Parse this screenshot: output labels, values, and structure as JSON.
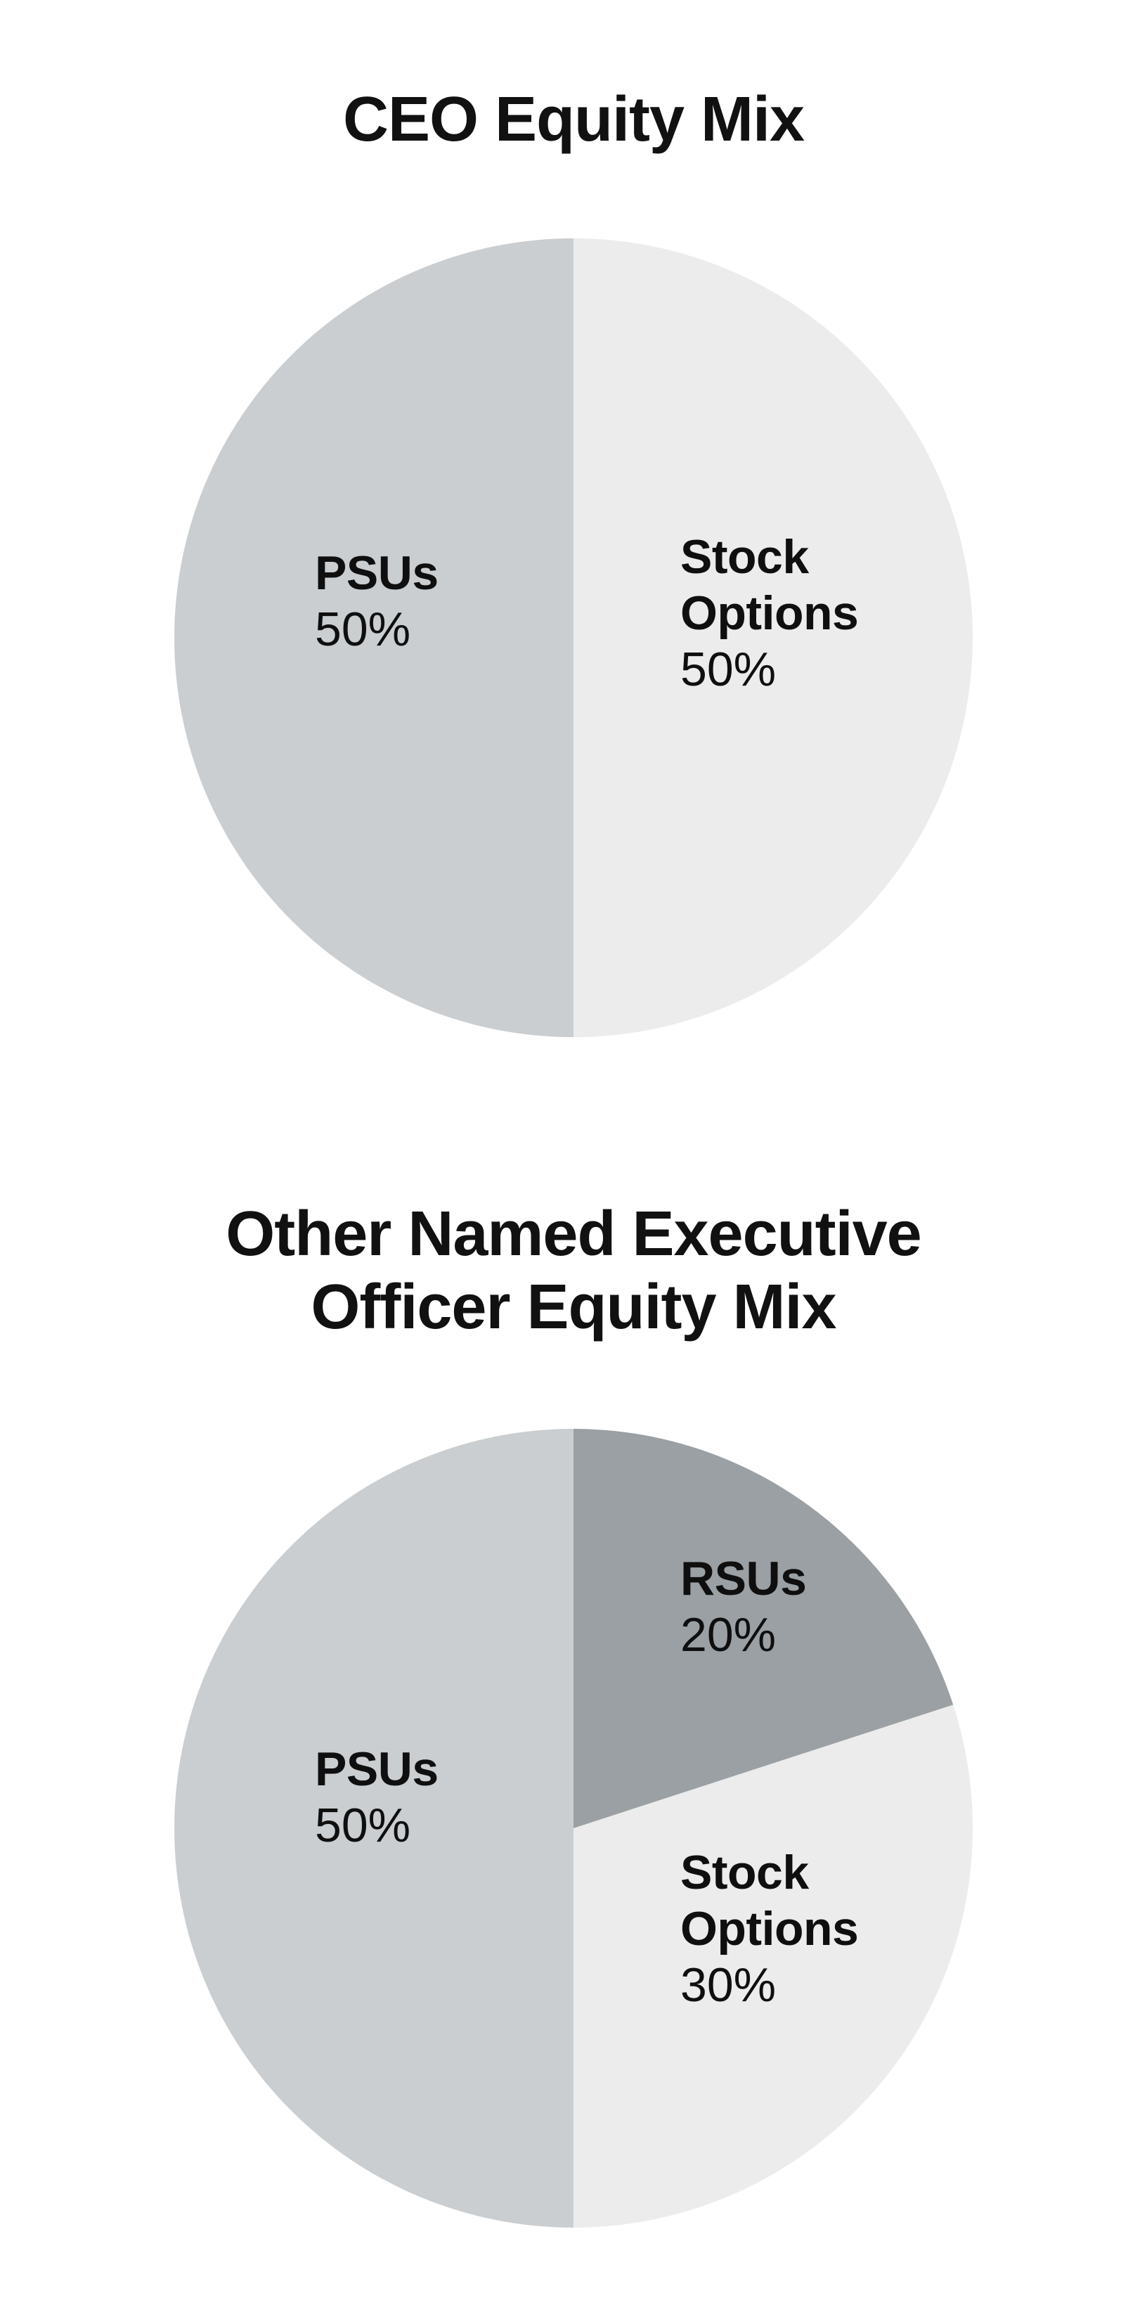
{
  "page": {
    "background": "#ffffff",
    "text_color": "#111111"
  },
  "chart_data": [
    {
      "type": "pie",
      "title": "CEO Equity Mix",
      "title_lines": [
        "CEO Equity Mix"
      ],
      "start_angle_deg": 0,
      "direction": "clockwise",
      "legend": "none",
      "label_position": "inside",
      "slices": [
        {
          "name": "Stock Options",
          "value": 50,
          "value_label": "50%",
          "color": "#ebeceb"
        },
        {
          "name": "PSUs",
          "value": 50,
          "value_label": "50%",
          "color": "#cbced0"
        }
      ]
    },
    {
      "type": "pie",
      "title": "Other Named Executive Officer Equity Mix",
      "title_lines": [
        "Other Named Executive",
        "Officer Equity Mix"
      ],
      "start_angle_deg": 0,
      "direction": "clockwise",
      "legend": "none",
      "label_position": "inside",
      "slices": [
        {
          "name": "RSUs",
          "value": 20,
          "value_label": "20%",
          "color": "#9aa0a4"
        },
        {
          "name": "Stock Options",
          "value": 30,
          "value_label": "30%",
          "color": "#ebeceb"
        },
        {
          "name": "PSUs",
          "value": 50,
          "value_label": "50%",
          "color": "#cbced0"
        }
      ]
    }
  ]
}
